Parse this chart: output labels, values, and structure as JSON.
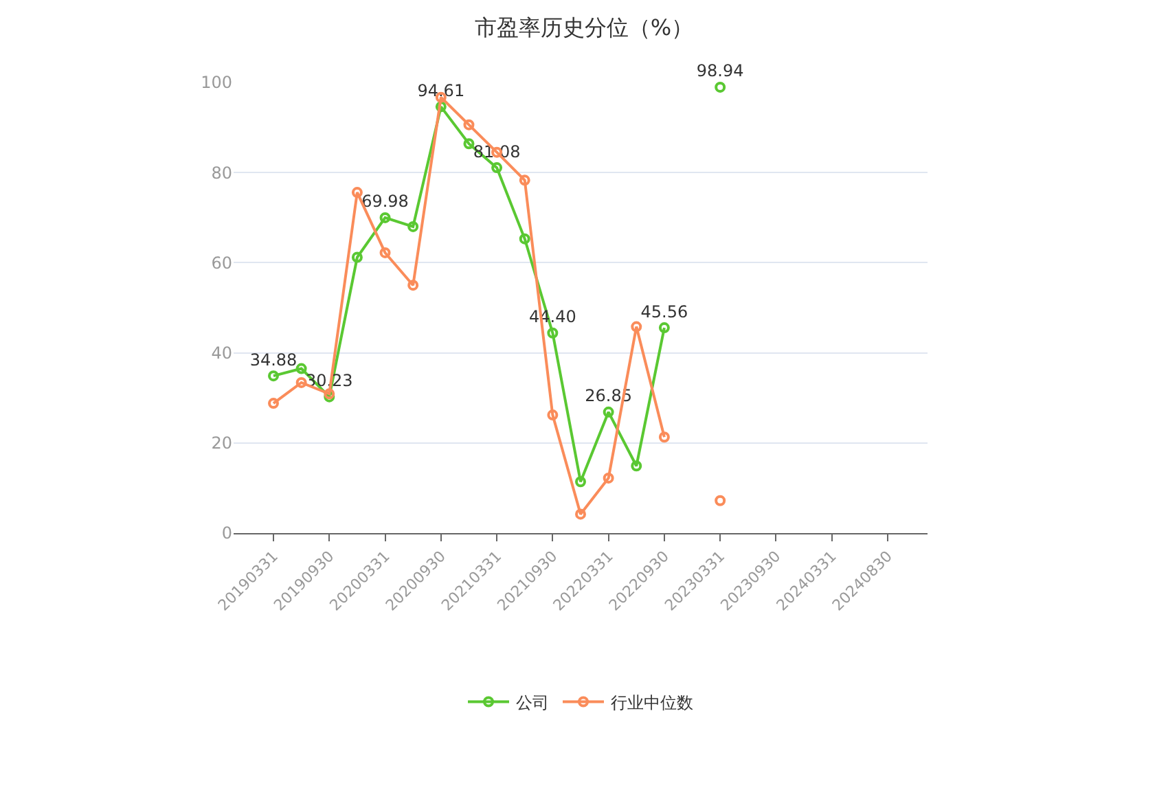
{
  "chart_data": {
    "type": "line",
    "title": "市盈率历史分位（%）",
    "categories": [
      "20190331",
      null,
      "20190930",
      null,
      "20200331",
      null,
      "20200930",
      null,
      "20210331",
      null,
      "20210930",
      null,
      "20220331",
      null,
      "20220930",
      null,
      "20230331",
      null,
      "20230930",
      null,
      "20240331",
      null,
      "20240830"
    ],
    "series": [
      {
        "name": "公司",
        "color": "#5ac832",
        "values": [
          34.88,
          36.5,
          30.23,
          61.2,
          69.98,
          68.0,
          94.61,
          86.4,
          81.08,
          65.3,
          44.4,
          11.4,
          26.85,
          14.9,
          45.56,
          null,
          98.94,
          null,
          null,
          null,
          null,
          null,
          null
        ],
        "value_labels": [
          "34.88",
          null,
          "30.23",
          null,
          "69.98",
          null,
          "94.61",
          null,
          "81.08",
          null,
          "44.40",
          null,
          "26.85",
          null,
          "45.56",
          null,
          "98.94",
          null,
          null,
          null,
          null,
          null,
          null
        ]
      },
      {
        "name": "行业中位数",
        "color": "#fa8c5a",
        "values": [
          28.8,
          33.4,
          30.9,
          75.6,
          62.2,
          55.0,
          96.7,
          90.6,
          84.5,
          78.3,
          26.2,
          4.2,
          12.2,
          45.8,
          21.3,
          null,
          7.2,
          null,
          null,
          null,
          null,
          null,
          null
        ]
      }
    ],
    "ylim": [
      0,
      100
    ],
    "yticks": [
      0,
      20,
      40,
      60,
      80,
      100
    ],
    "grid": "y",
    "legend": "bottom",
    "marker": "circle",
    "line_style": "solid"
  }
}
